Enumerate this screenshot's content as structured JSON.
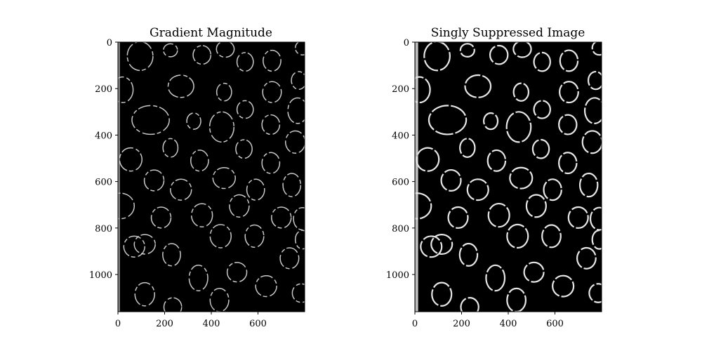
{
  "figure": {
    "background": "#ffffff"
  },
  "chart_data": [
    {
      "type": "heatmap",
      "title": "Gradient Magnitude",
      "colormap": "gray",
      "xlim": [
        0,
        800
      ],
      "ylim": [
        1160,
        0
      ],
      "xticks": [
        0,
        200,
        400,
        600
      ],
      "yticks": [
        0,
        200,
        400,
        600,
        800,
        1000
      ],
      "grid": false
    },
    {
      "type": "heatmap",
      "title": "Singly Suppressed Image",
      "colormap": "gray",
      "xlim": [
        0,
        800
      ],
      "ylim": [
        1160,
        0
      ],
      "xticks": [
        0,
        200,
        400,
        600
      ],
      "yticks": [
        0,
        200,
        400,
        600,
        800,
        1000
      ],
      "grid": false
    }
  ]
}
